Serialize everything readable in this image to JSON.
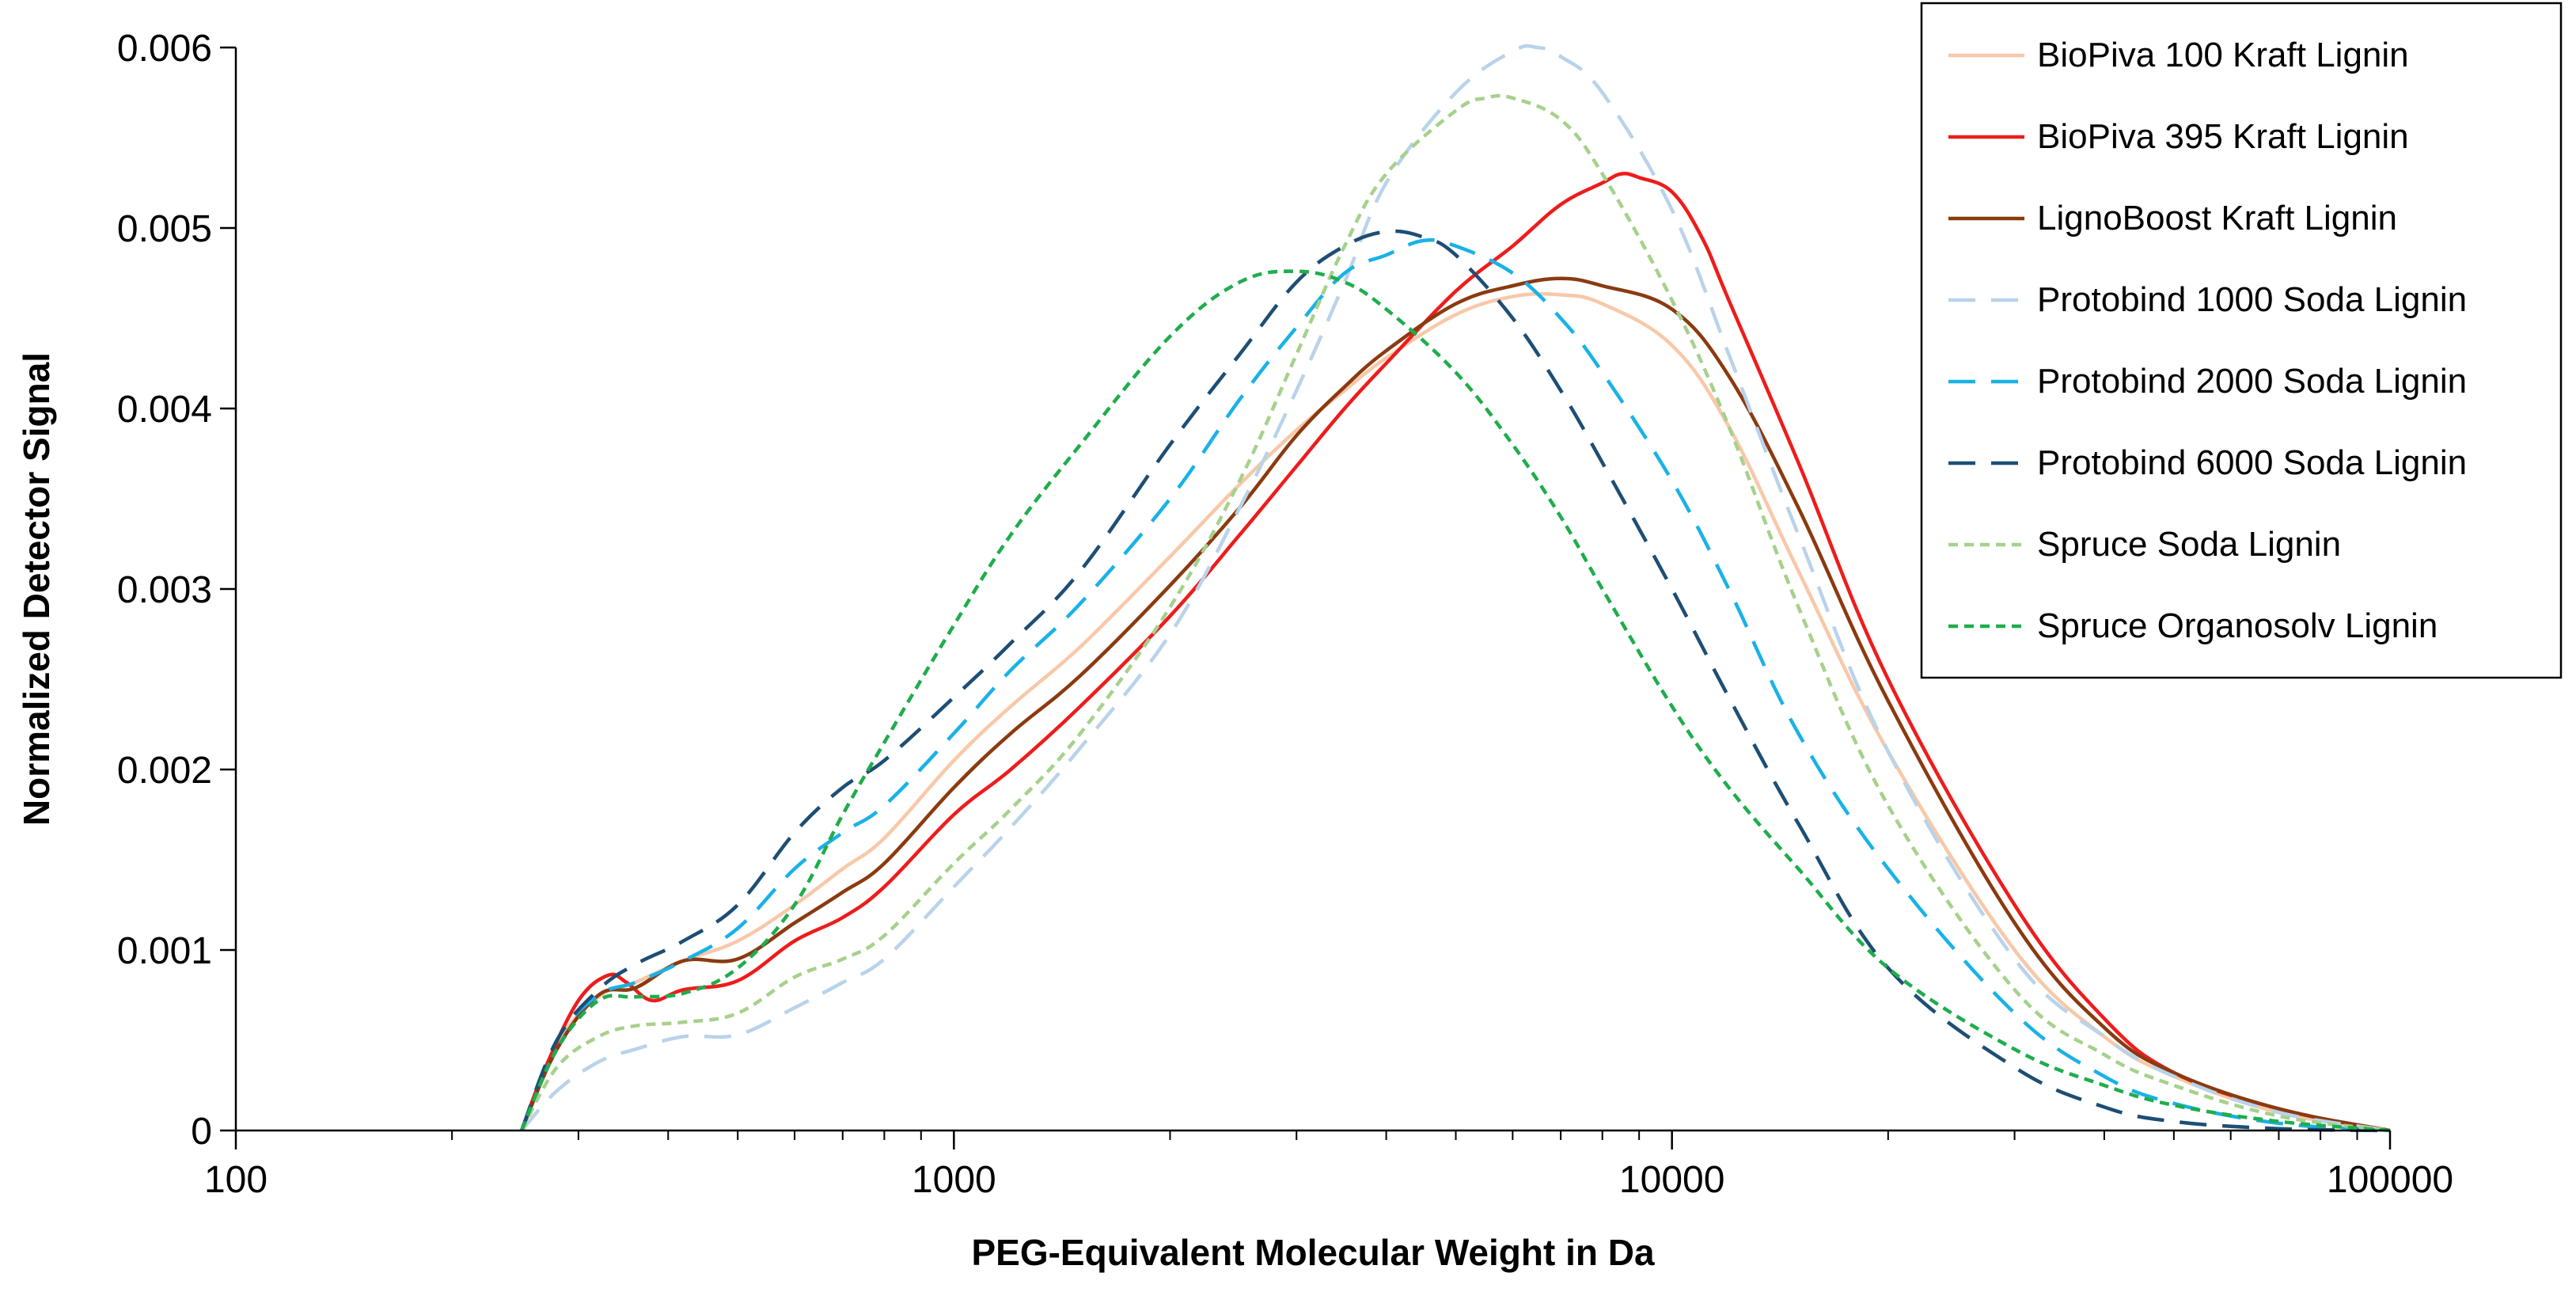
{
  "chart_data": {
    "type": "line",
    "title": "",
    "xlabel": "PEG-Equivalent Molecular Weight in Da",
    "ylabel": "Normalized Detector Signal",
    "xscale": "log",
    "xlim": [
      100,
      100000
    ],
    "ylim": [
      0,
      0.006
    ],
    "x_ticks": [
      100,
      1000,
      10000,
      100000
    ],
    "x_tick_labels": [
      "100",
      "1000",
      "10000",
      "100000"
    ],
    "y_ticks": [
      0,
      0.001,
      0.002,
      0.003,
      0.004,
      0.005,
      0.006
    ],
    "y_tick_labels": [
      "0",
      "0.001",
      "0.002",
      "0.003",
      "0.004",
      "0.005",
      "0.006"
    ],
    "grid": false,
    "legend_position": "top-right",
    "series": [
      {
        "name": "BioPiva 100 Kraft Lignin",
        "color": "#f8c8a8",
        "style": "solid",
        "points": [
          [
            250,
            0
          ],
          [
            280,
            0.00048
          ],
          [
            320,
            0.00074
          ],
          [
            360,
            0.00082
          ],
          [
            420,
            0.00094
          ],
          [
            500,
            0.00105
          ],
          [
            600,
            0.00125
          ],
          [
            700,
            0.00145
          ],
          [
            800,
            0.00162
          ],
          [
            1000,
            0.00205
          ],
          [
            1200,
            0.00235
          ],
          [
            1500,
            0.00268
          ],
          [
            2000,
            0.00318
          ],
          [
            2500,
            0.00358
          ],
          [
            3000,
            0.00388
          ],
          [
            3500,
            0.0041
          ],
          [
            4000,
            0.00428
          ],
          [
            5000,
            0.00452
          ],
          [
            6000,
            0.00462
          ],
          [
            7000,
            0.00463
          ],
          [
            8000,
            0.00458
          ],
          [
            10000,
            0.00435
          ],
          [
            12000,
            0.0039
          ],
          [
            15000,
            0.0031
          ],
          [
            20000,
            0.0021
          ],
          [
            30000,
            0.001
          ],
          [
            40000,
            0.00052
          ],
          [
            50000,
            0.0003
          ],
          [
            70000,
            0.0001
          ],
          [
            100000,
            0
          ]
        ]
      },
      {
        "name": "BioPiva 395 Kraft Lignin",
        "color": "#ee1c1c",
        "style": "solid",
        "points": [
          [
            250,
            0
          ],
          [
            270,
            0.00035
          ],
          [
            300,
            0.00072
          ],
          [
            330,
            0.00086
          ],
          [
            350,
            0.00082
          ],
          [
            380,
            0.00072
          ],
          [
            420,
            0.00078
          ],
          [
            500,
            0.00083
          ],
          [
            600,
            0.00105
          ],
          [
            700,
            0.00118
          ],
          [
            800,
            0.00135
          ],
          [
            1000,
            0.00175
          ],
          [
            1200,
            0.002
          ],
          [
            1500,
            0.00235
          ],
          [
            2000,
            0.00285
          ],
          [
            2500,
            0.0033
          ],
          [
            3000,
            0.00368
          ],
          [
            3500,
            0.004
          ],
          [
            4000,
            0.00425
          ],
          [
            5000,
            0.00465
          ],
          [
            6000,
            0.0049
          ],
          [
            7000,
            0.00513
          ],
          [
            8000,
            0.00525
          ],
          [
            8500,
            0.0053
          ],
          [
            9000,
            0.00528
          ],
          [
            10000,
            0.0052
          ],
          [
            11000,
            0.00495
          ],
          [
            12000,
            0.0046
          ],
          [
            15000,
            0.0037
          ],
          [
            20000,
            0.0025
          ],
          [
            30000,
            0.00125
          ],
          [
            40000,
            0.00062
          ],
          [
            50000,
            0.00032
          ],
          [
            70000,
            0.00012
          ],
          [
            100000,
            0
          ]
        ]
      },
      {
        "name": "LignoBoost Kraft Lignin",
        "color": "#8b3a10",
        "style": "solid",
        "points": [
          [
            250,
            0
          ],
          [
            280,
            0.00045
          ],
          [
            320,
            0.00075
          ],
          [
            360,
            0.00079
          ],
          [
            420,
            0.00094
          ],
          [
            500,
            0.00095
          ],
          [
            600,
            0.00115
          ],
          [
            700,
            0.00132
          ],
          [
            800,
            0.00148
          ],
          [
            1000,
            0.0019
          ],
          [
            1200,
            0.0022
          ],
          [
            1500,
            0.00252
          ],
          [
            2000,
            0.00302
          ],
          [
            2500,
            0.00345
          ],
          [
            3000,
            0.00385
          ],
          [
            3500,
            0.00412
          ],
          [
            4000,
            0.00432
          ],
          [
            5000,
            0.00458
          ],
          [
            6000,
            0.00468
          ],
          [
            7000,
            0.00472
          ],
          [
            8000,
            0.00468
          ],
          [
            10000,
            0.00455
          ],
          [
            12000,
            0.00418
          ],
          [
            15000,
            0.00345
          ],
          [
            20000,
            0.00238
          ],
          [
            30000,
            0.00115
          ],
          [
            40000,
            0.00057
          ],
          [
            50000,
            0.00032
          ],
          [
            70000,
            0.00012
          ],
          [
            100000,
            0
          ]
        ]
      },
      {
        "name": "Protobind 1000 Soda Lignin",
        "color": "#b8d3ea",
        "style": "long-dash",
        "points": [
          [
            250,
            0
          ],
          [
            280,
            0.00022
          ],
          [
            320,
            0.00038
          ],
          [
            360,
            0.00045
          ],
          [
            420,
            0.00052
          ],
          [
            500,
            0.00053
          ],
          [
            600,
            0.00068
          ],
          [
            700,
            0.00082
          ],
          [
            800,
            0.00095
          ],
          [
            1000,
            0.00135
          ],
          [
            1200,
            0.00168
          ],
          [
            1500,
            0.00212
          ],
          [
            2000,
            0.00275
          ],
          [
            2500,
            0.00345
          ],
          [
            3000,
            0.0041
          ],
          [
            3500,
            0.0047
          ],
          [
            4000,
            0.00525
          ],
          [
            5000,
            0.00575
          ],
          [
            6000,
            0.00598
          ],
          [
            6500,
            0.006
          ],
          [
            7000,
            0.00595
          ],
          [
            8000,
            0.00575
          ],
          [
            10000,
            0.0051
          ],
          [
            12000,
            0.0043
          ],
          [
            15000,
            0.0033
          ],
          [
            20000,
            0.0021
          ],
          [
            30000,
            0.00095
          ],
          [
            40000,
            0.00052
          ],
          [
            50000,
            0.0003
          ],
          [
            70000,
            0.0001
          ],
          [
            100000,
            0
          ]
        ]
      },
      {
        "name": "Protobind 2000 Soda Lignin",
        "color": "#19b2e6",
        "style": "long-dash",
        "points": [
          [
            250,
            0
          ],
          [
            280,
            0.0005
          ],
          [
            320,
            0.00075
          ],
          [
            360,
            0.00082
          ],
          [
            420,
            0.00094
          ],
          [
            500,
            0.00112
          ],
          [
            600,
            0.00145
          ],
          [
            700,
            0.00165
          ],
          [
            800,
            0.0018
          ],
          [
            1000,
            0.0022
          ],
          [
            1200,
            0.00255
          ],
          [
            1500,
            0.00292
          ],
          [
            2000,
            0.0035
          ],
          [
            2500,
            0.00405
          ],
          [
            3000,
            0.00445
          ],
          [
            3500,
            0.00475
          ],
          [
            4000,
            0.00485
          ],
          [
            4500,
            0.00493
          ],
          [
            5000,
            0.0049
          ],
          [
            6000,
            0.00475
          ],
          [
            7000,
            0.0045
          ],
          [
            8000,
            0.0042
          ],
          [
            10000,
            0.0036
          ],
          [
            12000,
            0.003
          ],
          [
            15000,
            0.0022
          ],
          [
            20000,
            0.00145
          ],
          [
            30000,
            0.00065
          ],
          [
            40000,
            0.0003
          ],
          [
            50000,
            0.00015
          ],
          [
            70000,
            4e-05
          ],
          [
            100000,
            0
          ]
        ]
      },
      {
        "name": "Protobind 6000 Soda Lignin",
        "color": "#1d4e75",
        "style": "long-dash",
        "points": [
          [
            250,
            0
          ],
          [
            280,
            0.0005
          ],
          [
            320,
            0.00078
          ],
          [
            360,
            0.00092
          ],
          [
            420,
            0.00105
          ],
          [
            500,
            0.00125
          ],
          [
            600,
            0.00165
          ],
          [
            700,
            0.0019
          ],
          [
            800,
            0.00205
          ],
          [
            1000,
            0.0024
          ],
          [
            1200,
            0.0027
          ],
          [
            1500,
            0.0031
          ],
          [
            2000,
            0.0038
          ],
          [
            2500,
            0.0043
          ],
          [
            3000,
            0.0047
          ],
          [
            3500,
            0.0049
          ],
          [
            4000,
            0.00498
          ],
          [
            4500,
            0.00495
          ],
          [
            5000,
            0.00485
          ],
          [
            6000,
            0.0045
          ],
          [
            7000,
            0.0041
          ],
          [
            8000,
            0.0037
          ],
          [
            10000,
            0.003
          ],
          [
            12000,
            0.0024
          ],
          [
            15000,
            0.0017
          ],
          [
            20000,
            0.0009
          ],
          [
            30000,
            0.00035
          ],
          [
            40000,
            0.00013
          ],
          [
            50000,
            5e-05
          ],
          [
            70000,
            1e-05
          ],
          [
            100000,
            0
          ]
        ]
      },
      {
        "name": "Spruce Soda Lignin",
        "color": "#a6d18c",
        "style": "short-dash",
        "points": [
          [
            250,
            0
          ],
          [
            280,
            0.00035
          ],
          [
            320,
            0.00052
          ],
          [
            360,
            0.00058
          ],
          [
            420,
            0.0006
          ],
          [
            500,
            0.00065
          ],
          [
            600,
            0.00085
          ],
          [
            700,
            0.00095
          ],
          [
            800,
            0.00108
          ],
          [
            1000,
            0.00148
          ],
          [
            1200,
            0.00178
          ],
          [
            1500,
            0.0022
          ],
          [
            2000,
            0.0029
          ],
          [
            2500,
            0.0036
          ],
          [
            3000,
            0.0043
          ],
          [
            3500,
            0.0049
          ],
          [
            4000,
            0.0053
          ],
          [
            5000,
            0.00565
          ],
          [
            5500,
            0.00572
          ],
          [
            6000,
            0.00572
          ],
          [
            7000,
            0.0056
          ],
          [
            8000,
            0.0053
          ],
          [
            10000,
            0.0046
          ],
          [
            12000,
            0.0039
          ],
          [
            15000,
            0.0029
          ],
          [
            20000,
            0.0018
          ],
          [
            30000,
            0.00078
          ],
          [
            40000,
            0.00042
          ],
          [
            50000,
            0.00025
          ],
          [
            70000,
            8e-05
          ],
          [
            100000,
            0
          ]
        ]
      },
      {
        "name": "Spruce Organosolv Lignin",
        "color": "#1fad4b",
        "style": "short-dash",
        "points": [
          [
            250,
            0
          ],
          [
            280,
            0.00045
          ],
          [
            320,
            0.00072
          ],
          [
            360,
            0.00074
          ],
          [
            420,
            0.00076
          ],
          [
            500,
            0.0009
          ],
          [
            600,
            0.00125
          ],
          [
            700,
            0.00175
          ],
          [
            800,
            0.00215
          ],
          [
            1000,
            0.0028
          ],
          [
            1200,
            0.0033
          ],
          [
            1500,
            0.0038
          ],
          [
            2000,
            0.0044
          ],
          [
            2500,
            0.0047
          ],
          [
            3000,
            0.00476
          ],
          [
            3500,
            0.0047
          ],
          [
            4000,
            0.00455
          ],
          [
            5000,
            0.0042
          ],
          [
            6000,
            0.0038
          ],
          [
            7000,
            0.0034
          ],
          [
            8000,
            0.003
          ],
          [
            10000,
            0.00235
          ],
          [
            12000,
            0.0019
          ],
          [
            15000,
            0.00145
          ],
          [
            20000,
            0.0009
          ],
          [
            30000,
            0.00045
          ],
          [
            40000,
            0.00025
          ],
          [
            50000,
            0.00014
          ],
          [
            70000,
            5e-05
          ],
          [
            100000,
            0
          ]
        ]
      }
    ]
  }
}
